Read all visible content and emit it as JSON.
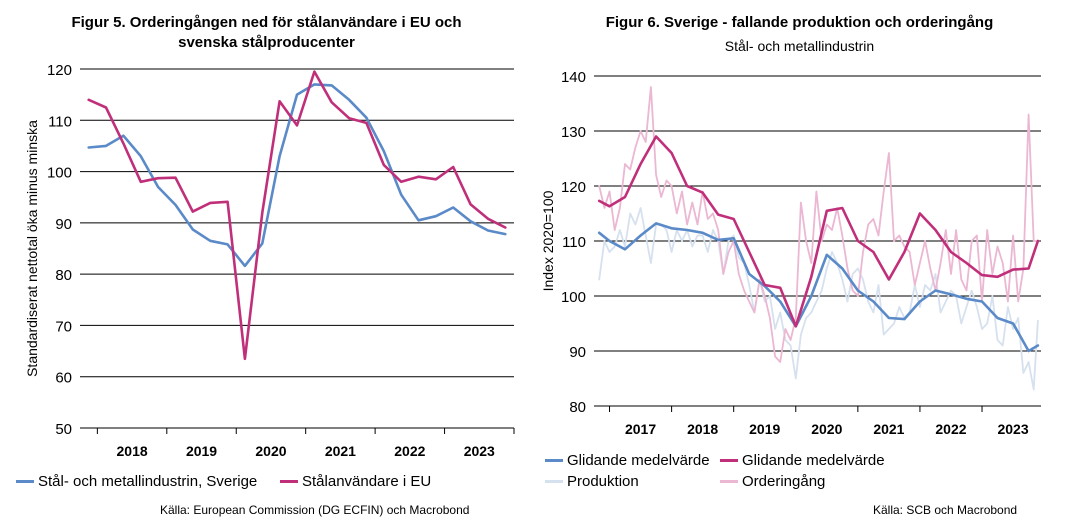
{
  "chart_data": [
    {
      "type": "line",
      "title_line1": "Figur 5. Orderingången ned för stålanvändare i EU och",
      "title_line2": "svenska stålproducenter",
      "ylabel": "Standardiserat nettotal öka minus minska",
      "ylim": [
        50,
        120
      ],
      "yticks": [
        50,
        60,
        70,
        80,
        90,
        100,
        110,
        120
      ],
      "categories": [
        "2018",
        "2019",
        "2020",
        "2021",
        "2022",
        "2023"
      ],
      "xlim": [
        2017.75,
        2024.0
      ],
      "series": [
        {
          "name": "Stål- och metallindustrin, Sverige",
          "color": "#5b8ac8",
          "x": [
            2017.875,
            2018.125,
            2018.375,
            2018.625,
            2018.875,
            2019.125,
            2019.375,
            2019.625,
            2019.875,
            2020.125,
            2020.375,
            2020.625,
            2020.875,
            2021.125,
            2021.375,
            2021.625,
            2021.875,
            2022.125,
            2022.375,
            2022.625,
            2022.875,
            2023.125,
            2023.375,
            2023.625,
            2023.875
          ],
          "values": [
            104.7,
            105.0,
            107.0,
            103.0,
            97.0,
            93.5,
            88.7,
            86.5,
            85.8,
            81.6,
            86.0,
            103.0,
            115.0,
            117.0,
            116.8,
            114.0,
            110.5,
            104.0,
            95.5,
            90.5,
            91.3,
            93.0,
            90.3,
            88.5,
            87.8
          ]
        },
        {
          "name": "Stålanvändare i EU",
          "color": "#c0307a",
          "x": [
            2017.875,
            2018.125,
            2018.375,
            2018.625,
            2018.875,
            2019.125,
            2019.375,
            2019.625,
            2019.875,
            2020.125,
            2020.375,
            2020.625,
            2020.875,
            2021.125,
            2021.375,
            2021.625,
            2021.875,
            2022.125,
            2022.375,
            2022.625,
            2022.875,
            2023.125,
            2023.375,
            2023.625,
            2023.875
          ],
          "values": [
            114.0,
            112.5,
            105.5,
            98.0,
            98.7,
            98.8,
            92.2,
            93.9,
            94.1,
            63.5,
            92.0,
            113.7,
            109.0,
            119.5,
            113.5,
            110.4,
            109.5,
            101.3,
            98.0,
            99.0,
            98.5,
            100.9,
            93.6,
            90.8,
            89.1
          ]
        }
      ],
      "legend_position": "bottom",
      "source": "Källa: European Commission (DG ECFIN) och Macrobond"
    },
    {
      "type": "line",
      "title": "Figur 6. Sverige - fallande produktion och orderingång",
      "subtitle": "Stål- och metallindustrin",
      "ylabel": "Index 2020=100",
      "ylim": [
        80,
        140
      ],
      "yticks": [
        80,
        90,
        100,
        110,
        120,
        130,
        140
      ],
      "categories": [
        "2017",
        "2018",
        "2019",
        "2020",
        "2021",
        "2022",
        "2023"
      ],
      "xlim": [
        2016.75,
        2023.95
      ],
      "series": [
        {
          "name": "Glidande medelvärde",
          "color": "#5b8ac8",
          "x": [
            2016.833,
            2017.0,
            2017.25,
            2017.5,
            2017.75,
            2018.0,
            2018.25,
            2018.5,
            2018.75,
            2019.0,
            2019.25,
            2019.5,
            2019.75,
            2020.0,
            2020.25,
            2020.5,
            2020.75,
            2021.0,
            2021.25,
            2021.5,
            2021.75,
            2022.0,
            2022.25,
            2022.5,
            2022.75,
            2023.0,
            2023.25,
            2023.5,
            2023.75,
            2023.9
          ],
          "values": [
            111.5,
            110.0,
            108.5,
            111.0,
            113.2,
            112.3,
            112.0,
            111.5,
            110.2,
            110.5,
            104.0,
            101.8,
            99.0,
            94.5,
            100.0,
            107.5,
            105.0,
            101.0,
            99.0,
            96.0,
            95.8,
            99.0,
            101.0,
            100.3,
            99.5,
            99.0,
            96.0,
            95.0,
            90.0,
            91.0
          ]
        },
        {
          "name": "Glidande medelvärde",
          "color": "#c0307a",
          "x": [
            2016.833,
            2017.0,
            2017.25,
            2017.5,
            2017.75,
            2018.0,
            2018.25,
            2018.5,
            2018.75,
            2019.0,
            2019.25,
            2019.5,
            2019.75,
            2020.0,
            2020.25,
            2020.5,
            2020.75,
            2021.0,
            2021.25,
            2021.5,
            2021.75,
            2022.0,
            2022.25,
            2022.5,
            2022.75,
            2023.0,
            2023.25,
            2023.5,
            2023.75,
            2023.9
          ],
          "values": [
            117.3,
            116.3,
            118.0,
            124.0,
            129.0,
            126.0,
            120.0,
            118.8,
            114.8,
            114.0,
            108.0,
            102.0,
            101.5,
            94.5,
            103.5,
            115.5,
            116.0,
            110.0,
            108.0,
            103.0,
            108.0,
            115.0,
            112.0,
            108.0,
            106.0,
            103.8,
            103.5,
            104.8,
            105.0,
            110.0
          ]
        },
        {
          "name": "Produktion",
          "color": "#d6e1ef",
          "x": [
            2016.833,
            2016.917,
            2017.0,
            2017.083,
            2017.167,
            2017.25,
            2017.333,
            2017.417,
            2017.5,
            2017.583,
            2017.667,
            2017.75,
            2017.833,
            2017.917,
            2018.0,
            2018.083,
            2018.167,
            2018.25,
            2018.333,
            2018.417,
            2018.5,
            2018.583,
            2018.667,
            2018.75,
            2018.833,
            2018.917,
            2019.0,
            2019.083,
            2019.167,
            2019.25,
            2019.333,
            2019.417,
            2019.5,
            2019.583,
            2019.667,
            2019.75,
            2019.833,
            2019.917,
            2020.0,
            2020.083,
            2020.167,
            2020.25,
            2020.333,
            2020.417,
            2020.5,
            2020.583,
            2020.667,
            2020.75,
            2020.833,
            2020.917,
            2021.0,
            2021.083,
            2021.167,
            2021.25,
            2021.333,
            2021.417,
            2021.5,
            2021.583,
            2021.667,
            2021.75,
            2021.833,
            2021.917,
            2022.0,
            2022.083,
            2022.167,
            2022.25,
            2022.333,
            2022.417,
            2022.5,
            2022.583,
            2022.667,
            2022.75,
            2022.833,
            2022.917,
            2023.0,
            2023.083,
            2023.167,
            2023.25,
            2023.333,
            2023.417,
            2023.5,
            2023.583,
            2023.667,
            2023.75,
            2023.833,
            2023.9
          ],
          "values": [
            103,
            110,
            108,
            109,
            112,
            109,
            115,
            113,
            116,
            111,
            106,
            113,
            113,
            112,
            108,
            112,
            110,
            112,
            109,
            111,
            111,
            108,
            112,
            110,
            104,
            110,
            111,
            107,
            106,
            102,
            97,
            103,
            99,
            100,
            94,
            97,
            92,
            91,
            85,
            93,
            96,
            97,
            99,
            101,
            105,
            108,
            106,
            103,
            99,
            104,
            105,
            103,
            99,
            97,
            102,
            93,
            94,
            95,
            98,
            96,
            97,
            102,
            98,
            102,
            101,
            104,
            97,
            99,
            101,
            100,
            95,
            98,
            101,
            98,
            94,
            95,
            100,
            92,
            91,
            98,
            94,
            96,
            86,
            88,
            83,
            95.5
          ]
        },
        {
          "name": "Orderingång",
          "color": "#ebb7d2",
          "x": [
            2016.833,
            2016.917,
            2017.0,
            2017.083,
            2017.167,
            2017.25,
            2017.333,
            2017.417,
            2017.5,
            2017.583,
            2017.667,
            2017.75,
            2017.833,
            2017.917,
            2018.0,
            2018.083,
            2018.167,
            2018.25,
            2018.333,
            2018.417,
            2018.5,
            2018.583,
            2018.667,
            2018.75,
            2018.833,
            2018.917,
            2019.0,
            2019.083,
            2019.167,
            2019.25,
            2019.333,
            2019.417,
            2019.5,
            2019.583,
            2019.667,
            2019.75,
            2019.833,
            2019.917,
            2020.0,
            2020.083,
            2020.167,
            2020.25,
            2020.333,
            2020.417,
            2020.5,
            2020.583,
            2020.667,
            2020.75,
            2020.833,
            2020.917,
            2021.0,
            2021.083,
            2021.167,
            2021.25,
            2021.333,
            2021.417,
            2021.5,
            2021.583,
            2021.667,
            2021.75,
            2021.833,
            2021.917,
            2022.0,
            2022.083,
            2022.167,
            2022.25,
            2022.333,
            2022.417,
            2022.5,
            2022.583,
            2022.667,
            2022.75,
            2022.833,
            2022.917,
            2023.0,
            2023.083,
            2023.167,
            2023.25,
            2023.333,
            2023.417,
            2023.5,
            2023.583,
            2023.667,
            2023.75,
            2023.833,
            2023.9
          ],
          "values": [
            120,
            116,
            119,
            112,
            116,
            124,
            123,
            127,
            130,
            128,
            138,
            122,
            118,
            121,
            120,
            115,
            119,
            113,
            117,
            113,
            119,
            114,
            115,
            112,
            104,
            108,
            110,
            104,
            101,
            99,
            97,
            103,
            100,
            96,
            89,
            88,
            94,
            92,
            96,
            117,
            110,
            106,
            119,
            110,
            113,
            112,
            116,
            111,
            105,
            101,
            100,
            108,
            113,
            114,
            111,
            119,
            126,
            110,
            111,
            109,
            108,
            102,
            106,
            110,
            105,
            101,
            106,
            112,
            104,
            112,
            103,
            101,
            110,
            111,
            99,
            112,
            104,
            109,
            106,
            99,
            111,
            99,
            105,
            133,
            110,
            110
          ]
        }
      ],
      "legend_position": "bottom",
      "source": "Källa: SCB och Macrobond"
    }
  ]
}
